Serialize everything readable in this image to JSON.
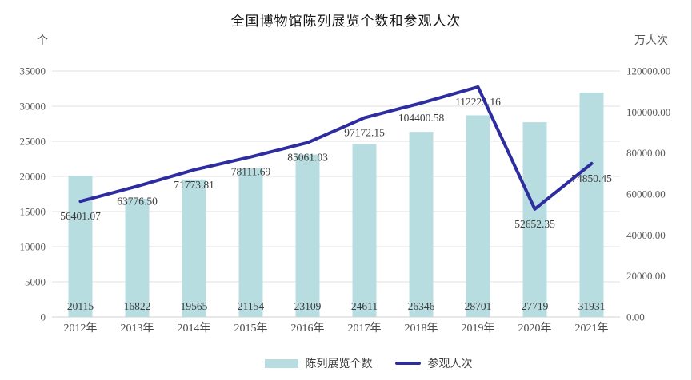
{
  "title": "全国博物馆陈列展览个数和参观人次",
  "axes": {
    "left_unit": "个",
    "right_unit": "万人次",
    "left_tick_labels": [
      "0",
      "5000",
      "10000",
      "15000",
      "20000",
      "25000",
      "30000",
      "35000"
    ],
    "right_tick_labels": [
      "0.00",
      "20000.00",
      "40000.00",
      "60000.00",
      "80000.00",
      "100000.00",
      "120000.00"
    ]
  },
  "legend": {
    "bar_label": "陈列展览个数",
    "line_label": "参观人次"
  },
  "colors": {
    "bar": "#b8dde1",
    "line": "#2d2d9f",
    "gridline": "#e0e0e0",
    "baseline": "#d2d2d2",
    "tick_text": "#595959",
    "value_text": "#3a3a3a",
    "category_text": "#4a4a4a"
  },
  "chart_data": {
    "type": "combo",
    "title": "全国博物馆陈列展览个数和参观人次",
    "categories": [
      "2012年",
      "2013年",
      "2014年",
      "2015年",
      "2016年",
      "2017年",
      "2018年",
      "2019年",
      "2020年",
      "2021年"
    ],
    "series": [
      {
        "name": "陈列展览个数",
        "type": "bar",
        "axis": "left",
        "values": [
          20115,
          16822,
          19565,
          21154,
          23109,
          24611,
          26346,
          28701,
          27719,
          31931
        ],
        "value_labels": [
          "20115",
          "16822",
          "19565",
          "21154",
          "23109",
          "24611",
          "26346",
          "28701",
          "27719",
          "31931"
        ]
      },
      {
        "name": "参观人次",
        "type": "line",
        "axis": "right",
        "values": [
          56401.07,
          63776.5,
          71773.81,
          78111.69,
          85061.03,
          97172.15,
          104400.58,
          112223.16,
          52652.35,
          74850.45
        ],
        "value_labels": [
          "56401.07",
          "63776.50",
          "71773.81",
          "78111.69",
          "85061.03",
          "97172.15",
          "104400.58",
          "112223.16",
          "52652.35",
          "74850.45"
        ]
      }
    ],
    "left_axis": {
      "unit": "个",
      "min": 0,
      "max": 35000,
      "tick_step": 5000
    },
    "right_axis": {
      "unit": "万人次",
      "min": 0,
      "max": 120000,
      "tick_step": 20000
    },
    "grid": true,
    "legend_position": "bottom"
  }
}
